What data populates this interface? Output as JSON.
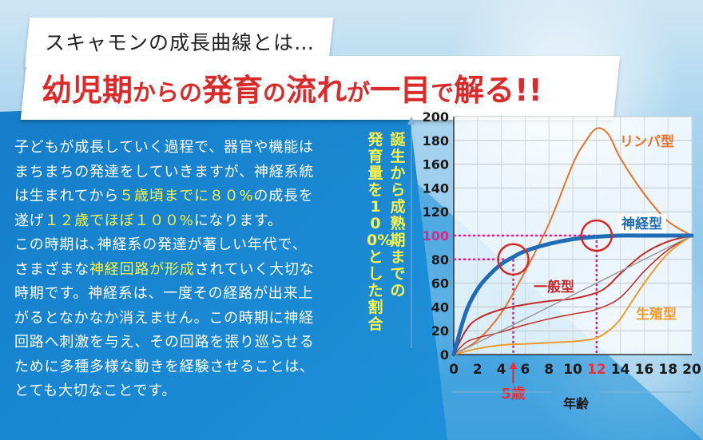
{
  "header": {
    "subtitle": "スキャモンの成長曲線とは…",
    "headline": [
      {
        "text": "幼児期",
        "size": "big"
      },
      {
        "text": "からの",
        "size": "small"
      },
      {
        "text": "発育",
        "size": "big"
      },
      {
        "text": "の",
        "size": "small"
      },
      {
        "text": "流れ",
        "size": "big"
      },
      {
        "text": "が",
        "size": "small"
      },
      {
        "text": "一目",
        "size": "big"
      },
      {
        "text": "で",
        "size": "small"
      },
      {
        "text": "解る",
        "size": "big"
      },
      {
        "text": "!!",
        "size": "big"
      }
    ]
  },
  "body": {
    "lines": [
      [
        {
          "t": "子どもが成長していく過程で、器官や機能は"
        }
      ],
      [
        {
          "t": "まちまちの発達をしていきますが、神経系統"
        }
      ],
      [
        {
          "t": "は生まれてから"
        },
        {
          "t": "５歳頃までに８０%",
          "hl": true
        },
        {
          "t": "の成長を"
        }
      ],
      [
        {
          "t": "遂げ"
        },
        {
          "t": "１２歳でほぼ１００%",
          "hl": true
        },
        {
          "t": "になります。"
        }
      ],
      [
        {
          "t": "この時期は､神経系の発達が著しい年代で､"
        }
      ],
      [
        {
          "t": "さまざまな"
        },
        {
          "t": "神経回路が形成",
          "hl": true
        },
        {
          "t": "されていく大切な"
        }
      ],
      [
        {
          "t": "時期です。神経系は、一度その経路が出来上"
        }
      ],
      [
        {
          "t": "がるとなかなか消えません。この時期に神経"
        }
      ],
      [
        {
          "t": "回路へ刺激を与え、その回路を張り巡らせる"
        }
      ],
      [
        {
          "t": "ために多種多様な動きを経験させることは､"
        }
      ],
      [
        {
          "t": "とても大切なことです。"
        }
      ]
    ]
  },
  "colors": {
    "lymph": "#e8732e",
    "neural": "#1f6eb5",
    "general": "#c42a2a",
    "reproductive": "#ef9a2c",
    "guide": "#d62a8a",
    "text_highlight": "#f6f24a",
    "headline": "#d92b2b"
  },
  "chart_data": {
    "type": "line",
    "ylabel_col1": "誕生から成熟期までの",
    "ylabel_col2": "発育量を100%とした割合",
    "xlabel": "年齢",
    "xlim": [
      0,
      20
    ],
    "ylim": [
      0,
      200
    ],
    "xticks": [
      "0",
      "2",
      "4",
      "6",
      "8",
      "10",
      "12",
      "14",
      "16",
      "18",
      "20"
    ],
    "yticks": [
      "0",
      "20",
      "40",
      "60",
      "80",
      "100",
      "120",
      "140",
      "160",
      "180",
      "200"
    ],
    "highlight_xtick": "12",
    "highlight_ytick": "100",
    "annotation_age": "5歳",
    "series": [
      {
        "name": "リンパ型",
        "key": "lymph",
        "x": [
          0,
          2,
          4,
          6,
          8,
          10,
          11,
          12,
          13,
          14,
          16,
          18,
          20
        ],
        "y": [
          0,
          12,
          35,
          70,
          110,
          160,
          178,
          190,
          185,
          165,
          135,
          112,
          100
        ]
      },
      {
        "name": "神経型",
        "key": "neural",
        "x": [
          0,
          1,
          2,
          3,
          4,
          5,
          6,
          8,
          10,
          12,
          14,
          16,
          18,
          20
        ],
        "y": [
          0,
          35,
          55,
          67,
          76,
          82,
          87,
          93,
          97,
          99,
          100,
          100,
          100,
          100
        ]
      },
      {
        "name": "一般型",
        "key": "general",
        "x": [
          0,
          1,
          2,
          4,
          6,
          8,
          10,
          12,
          13,
          14,
          16,
          18,
          20
        ],
        "y": [
          0,
          20,
          30,
          38,
          42,
          45,
          47,
          52,
          58,
          68,
          85,
          95,
          100
        ]
      },
      {
        "name": "",
        "key": "early",
        "x": [
          0,
          1,
          2,
          4,
          6,
          8,
          10,
          12,
          14,
          16,
          18,
          20
        ],
        "y": [
          0,
          10,
          14,
          19,
          25,
          30,
          34,
          38,
          48,
          70,
          88,
          100
        ]
      },
      {
        "name": "",
        "key": "linear",
        "x": [
          0,
          20
        ],
        "y": [
          0,
          100
        ]
      },
      {
        "name": "生殖型",
        "key": "reproductive",
        "x": [
          0,
          2,
          4,
          6,
          8,
          10,
          11,
          12,
          13,
          14,
          16,
          18,
          20
        ],
        "y": [
          0,
          5,
          8,
          9,
          10,
          11,
          12,
          14,
          20,
          30,
          60,
          85,
          100
        ]
      }
    ],
    "markers": [
      {
        "x": 5,
        "y": 80
      },
      {
        "x": 12,
        "y": 100
      }
    ]
  }
}
